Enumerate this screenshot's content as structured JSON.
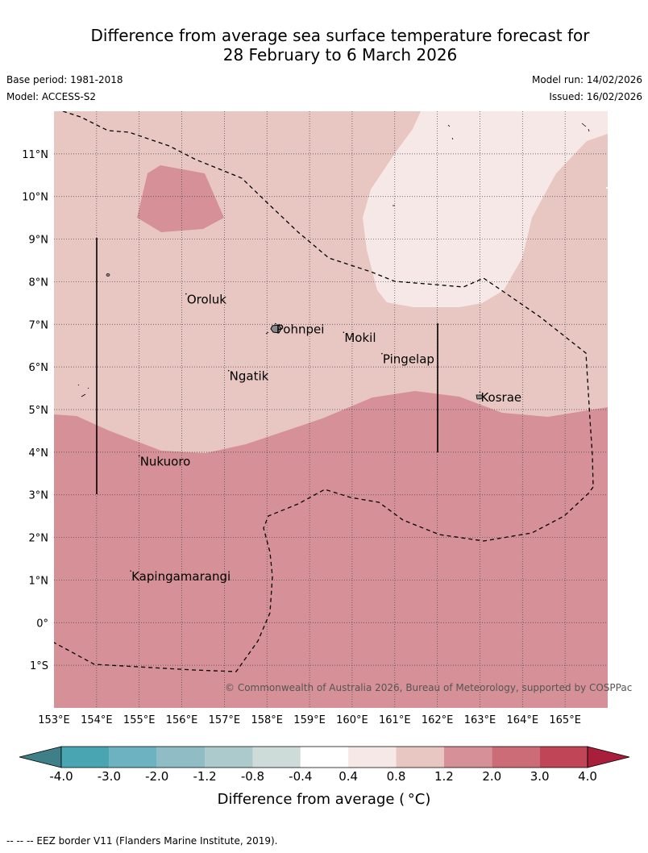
{
  "title": {
    "line1": "Difference from average sea surface temperature forecast for",
    "line2": "28 February to 6 March 2026"
  },
  "meta": {
    "base_period": "Base period: 1981-2018",
    "model": "Model: ACCESS-S2",
    "model_run": "Model run: 14/02/2026",
    "issued": "Issued: 16/02/2026"
  },
  "map": {
    "lon_ticks": [
      "153°E",
      "154°E",
      "155°E",
      "156°E",
      "157°E",
      "158°E",
      "159°E",
      "160°E",
      "161°E",
      "162°E",
      "163°E",
      "164°E",
      "165°E"
    ],
    "lat_ticks": [
      "11°N",
      "10°N",
      "9°N",
      "8°N",
      "7°N",
      "6°N",
      "5°N",
      "4°N",
      "3°N",
      "2°N",
      "1°N",
      "0°",
      "1°S"
    ],
    "places": [
      {
        "name": "Oroluk",
        "lon": 156.1,
        "lat": 7.6
      },
      {
        "name": "Pohnpei",
        "lon": 158.2,
        "lat": 6.9
      },
      {
        "name": "Mokil",
        "lon": 159.8,
        "lat": 6.7
      },
      {
        "name": "Pingelap",
        "lon": 160.7,
        "lat": 6.2
      },
      {
        "name": "Ngatik",
        "lon": 157.1,
        "lat": 5.8
      },
      {
        "name": "Kosrae",
        "lon": 163.0,
        "lat": 5.3
      },
      {
        "name": "Nukuoro",
        "lon": 155.0,
        "lat": 3.8
      },
      {
        "name": "Kapingamarangi",
        "lon": 154.8,
        "lat": 1.1
      }
    ],
    "copyright": "© Commonwealth of Australia 2026, Bureau of Meteorology, supported by COSPPac"
  },
  "colorbar": {
    "bins": [
      {
        "color": "#4aa5b3"
      },
      {
        "color": "#6db2c1"
      },
      {
        "color": "#8fbcc5"
      },
      {
        "color": "#acc9cb"
      },
      {
        "color": "#cddbd9"
      },
      {
        "color": "#ffffff"
      },
      {
        "color": "#f5e8e6"
      },
      {
        "color": "#e8c7c2"
      },
      {
        "color": "#d69097"
      },
      {
        "color": "#cb6c76"
      },
      {
        "color": "#bf4557"
      }
    ],
    "low_extend_color": "#3f7f88",
    "high_extend_color": "#a81e3b",
    "tick_labels": [
      "-4.0",
      "-3.0",
      "-2.0",
      "-1.2",
      "-0.8",
      "-0.4",
      "0.4",
      "0.8",
      "1.2",
      "2.0",
      "3.0",
      "4.0"
    ],
    "label": "Difference from average ( °C)"
  },
  "footer": {
    "legend_text": "--  --  -- EEZ border V11 (Flanders Marine Institute, 2019)."
  },
  "colors": {
    "band_1_2_to_2_0": "#d69097",
    "band_0_8_to_1_2": "#e8c7c2",
    "band_0_4_to_0_8": "#f5e8e6"
  }
}
